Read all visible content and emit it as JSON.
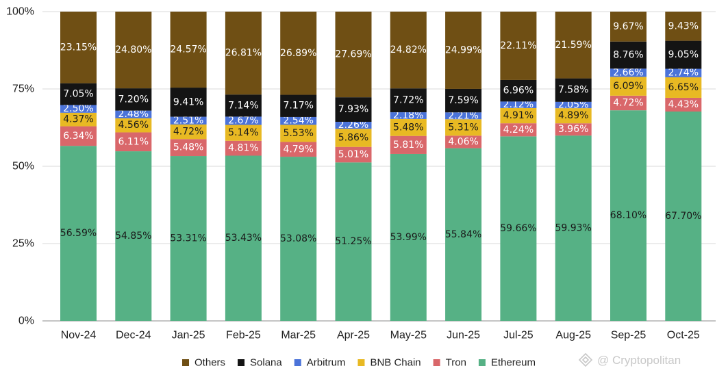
{
  "chart_data": {
    "type": "bar",
    "stacked": true,
    "normalized": true,
    "title": "",
    "xlabel": "",
    "ylabel": "",
    "ylim": [
      0,
      100
    ],
    "yticks": [
      "0%",
      "25%",
      "50%",
      "75%",
      "100%"
    ],
    "categories": [
      "Nov-24",
      "Dec-24",
      "Jan-25",
      "Feb-25",
      "Mar-25",
      "Apr-25",
      "May-25",
      "Jun-25",
      "Jul-25",
      "Aug-25",
      "Sep-25",
      "Oct-25"
    ],
    "series": [
      {
        "name": "Ethereum",
        "color": "#56b185",
        "label_color": "#1a1a1a",
        "values": [
          56.59,
          54.85,
          53.31,
          53.43,
          53.08,
          51.25,
          53.99,
          55.84,
          59.66,
          59.93,
          68.1,
          67.7
        ],
        "labels": [
          "56.59%",
          "54.85%",
          "53.31%",
          "53.43%",
          "53.08%",
          "51.25%",
          "53.99%",
          "55.84%",
          "59.66%",
          "59.93%",
          "68.10%",
          "67.70%"
        ]
      },
      {
        "name": "Tron",
        "color": "#d9676a",
        "label_color": "#ffffff",
        "values": [
          6.34,
          6.11,
          5.48,
          4.81,
          4.79,
          5.01,
          5.81,
          4.06,
          4.24,
          3.96,
          4.72,
          4.43
        ],
        "labels": [
          "6.34%",
          "6.11%",
          "5.48%",
          "4.81%",
          "4.79%",
          "5.01%",
          "5.81%",
          "4.06%",
          "4.24%",
          "3.96%",
          "4.72%",
          "4.43%"
        ]
      },
      {
        "name": "BNB Chain",
        "color": "#e8b923",
        "label_color": "#1a1a1a",
        "values": [
          4.37,
          4.56,
          4.72,
          5.14,
          5.53,
          5.86,
          5.48,
          5.31,
          4.91,
          4.89,
          6.09,
          6.65
        ],
        "labels": [
          "4.37%",
          "4.56%",
          "4.72%",
          "5.14%",
          "5.53%",
          "5.86%",
          "5.48%",
          "5.31%",
          "4.91%",
          "4.89%",
          "6.09%",
          "6.65%"
        ]
      },
      {
        "name": "Arbitrum",
        "color": "#4b73d9",
        "label_color": "#ffffff",
        "values": [
          2.5,
          2.48,
          2.51,
          2.67,
          2.54,
          2.26,
          2.18,
          2.21,
          2.12,
          2.05,
          2.66,
          2.74
        ],
        "labels": [
          "2.50%",
          "2.48%",
          "2.51%",
          "2.67%",
          "2.54%",
          "2.26%",
          "2.18%",
          "2.21%",
          "2.12%",
          "2.05%",
          "2.66%",
          "2.74%"
        ]
      },
      {
        "name": "Solana",
        "color": "#141414",
        "label_color": "#ffffff",
        "values": [
          7.05,
          7.2,
          9.41,
          7.14,
          7.17,
          7.93,
          7.72,
          7.59,
          6.96,
          7.58,
          8.76,
          9.05
        ],
        "labels": [
          "7.05%",
          "7.20%",
          "9.41%",
          "7.14%",
          "7.17%",
          "7.93%",
          "7.72%",
          "7.59%",
          "6.96%",
          "7.58%",
          "8.76%",
          "9.05%"
        ]
      },
      {
        "name": "Others",
        "color": "#6f4f14",
        "label_color": "#ffffff",
        "values": [
          23.15,
          24.8,
          24.57,
          26.81,
          26.89,
          27.69,
          24.82,
          24.99,
          22.11,
          21.59,
          9.67,
          9.43
        ],
        "labels": [
          "23.15%",
          "24.80%",
          "24.57%",
          "26.81%",
          "26.89%",
          "27.69%",
          "24.82%",
          "24.99%",
          "22.11%",
          "21.59%",
          "9.67%",
          "9.43%"
        ]
      }
    ],
    "legend": {
      "placement": "bottom",
      "order": [
        "Others",
        "Solana",
        "Arbitrum",
        "BNB Chain",
        "Tron",
        "Ethereum"
      ]
    }
  },
  "watermark": {
    "text": "@ Cryptopolitan",
    "icon": "binance-logo-icon"
  }
}
